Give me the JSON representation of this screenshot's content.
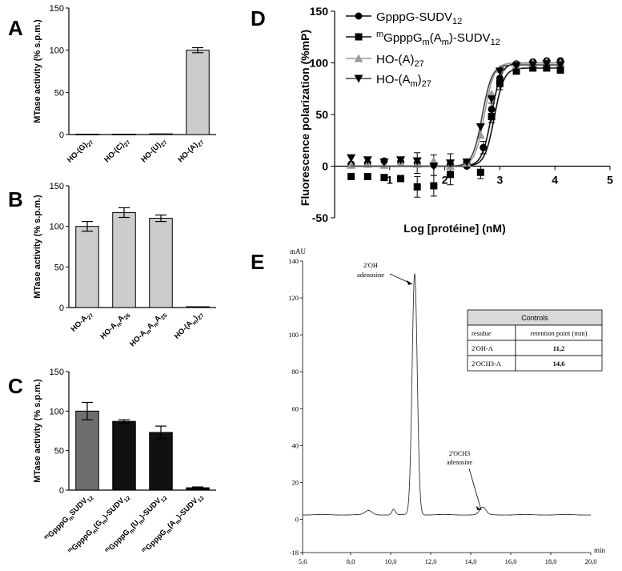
{
  "panels": {
    "A": "A",
    "B": "B",
    "C": "C",
    "D": "D",
    "E": "E"
  },
  "colors": {
    "bar_light": "#cccccc",
    "bar_mid": "#6e6e6e",
    "bar_dark": "#111111",
    "line_grey": "#9a9a9a",
    "table_header": "#d9d9d9"
  },
  "chart_data": [
    {
      "id": "A",
      "type": "bar",
      "ylabel": "MTase activity (% s.p.m.)",
      "ylim": [
        0,
        150
      ],
      "yticks": [
        "0",
        "50",
        "100",
        "150"
      ],
      "categories": [
        "HO-(G)27",
        "HO-(C)27",
        "HO-(U)27",
        "HO-(A)27"
      ],
      "values": [
        0.5,
        0.5,
        0.8,
        100
      ],
      "errors": [
        0,
        0,
        0,
        3
      ]
    },
    {
      "id": "B",
      "type": "bar",
      "ylabel": "MTase activity (% s.p.m.)",
      "ylim": [
        0,
        150
      ],
      "yticks": [
        "0",
        "50",
        "100",
        "150"
      ],
      "categories": [
        "HO-A27",
        "HO-AmA26",
        "HO-AmAmA25",
        "HO-(Am)27"
      ],
      "values": [
        100,
        117,
        110,
        1
      ],
      "errors": [
        6,
        6,
        4,
        0
      ]
    },
    {
      "id": "C",
      "type": "bar",
      "ylabel": "MTase activity (% s.p.m.)",
      "ylim": [
        0,
        150
      ],
      "yticks": [
        "0",
        "50",
        "100",
        "150"
      ],
      "categories": [
        "mGpppGmSUDV12",
        "mGpppGm(Gm)-SUDV12",
        "mGpppGm(Um)-SUDV12",
        "mGpppGm(Am)-SUDV12"
      ],
      "values": [
        100,
        87,
        73,
        3
      ],
      "errors": [
        11,
        2,
        8,
        1
      ]
    },
    {
      "id": "D",
      "type": "scatter",
      "xlabel": "Log [protéine] (nM)",
      "ylabel": "Fluorescence polarization (%mP)",
      "xlim": [
        0,
        5
      ],
      "ylim": [
        -50,
        150
      ],
      "xticks": [
        "1",
        "2",
        "3",
        "4",
        "5"
      ],
      "yticks": [
        "-50",
        "0",
        "50",
        "100",
        "150"
      ],
      "series": [
        {
          "name": "GpppG-SUDV12",
          "marker": "circle",
          "x": [
            0.3,
            0.6,
            0.9,
            1.2,
            1.5,
            1.8,
            2.1,
            2.4,
            2.7,
            2.85,
            3.0,
            3.3,
            3.6,
            3.85,
            4.1
          ],
          "y": [
            2,
            3,
            5,
            4,
            3,
            1,
            2,
            0,
            18,
            55,
            85,
            99,
            101,
            102,
            102
          ],
          "ec50": 2.85,
          "bottom": 0,
          "top": 100
        },
        {
          "name": "mGpppGm(Am)-SUDV12",
          "marker": "square",
          "x": [
            0.3,
            0.6,
            0.9,
            1.2,
            1.5,
            1.8,
            2.1,
            2.4,
            2.65,
            2.85,
            3.0,
            3.3,
            3.6,
            3.85,
            4.1
          ],
          "y": [
            -10,
            -10,
            -11,
            -12,
            -20,
            -19,
            -8,
            2,
            -6,
            48,
            80,
            92,
            95,
            95,
            93
          ],
          "ec50": 2.9,
          "bottom": 0,
          "top": 95
        },
        {
          "name": "HO-(A)27",
          "marker": "triangle-up",
          "x": [
            0.3,
            0.6,
            0.9,
            1.2,
            1.5,
            1.8,
            2.1,
            2.4,
            2.65,
            2.85,
            3.0,
            3.3,
            3.6,
            3.85,
            4.1
          ],
          "y": [
            1,
            2,
            1,
            3,
            2,
            5,
            0,
            3,
            30,
            70,
            94,
            98,
            100,
            101,
            100
          ],
          "ec50": 2.72,
          "bottom": 0,
          "top": 100
        },
        {
          "name": "HO-(Am)27",
          "marker": "triangle-down",
          "x": [
            0.3,
            0.6,
            0.9,
            1.2,
            1.5,
            1.8,
            2.1,
            2.4,
            2.65,
            2.85,
            3.0,
            3.3,
            3.6,
            3.85,
            4.1
          ],
          "y": [
            8,
            6,
            4,
            6,
            5,
            0,
            3,
            4,
            38,
            65,
            92,
            97,
            98,
            99,
            98
          ],
          "ec50": 2.68,
          "bottom": 0,
          "top": 98
        }
      ]
    },
    {
      "id": "E",
      "type": "line",
      "ylabel": "mAU",
      "xlabel": "min",
      "xlim": [
        5.6,
        20.0
      ],
      "ylim": [
        -18,
        140
      ],
      "xticks": [
        "5,6",
        "8,0",
        "10,0",
        "12,0",
        "14,0",
        "16,0",
        "18,0",
        "20,0"
      ],
      "yticks": [
        "-18",
        "0",
        "20",
        "40",
        "60",
        "80",
        "100",
        "120",
        "140"
      ],
      "peaks": [
        {
          "label1": "2'OH",
          "label2": "adenosine",
          "x": 11.2,
          "height": 131
        },
        {
          "label1": "2'OCH3",
          "label2": "adenosine",
          "x": 14.6,
          "height": 6
        }
      ],
      "table": {
        "title": "Controls",
        "headers": [
          "residue",
          "retention point (min)"
        ],
        "rows": [
          [
            "2'OH-A",
            "11,2"
          ],
          [
            "2'OCH3-A",
            "14,6"
          ]
        ]
      }
    }
  ]
}
